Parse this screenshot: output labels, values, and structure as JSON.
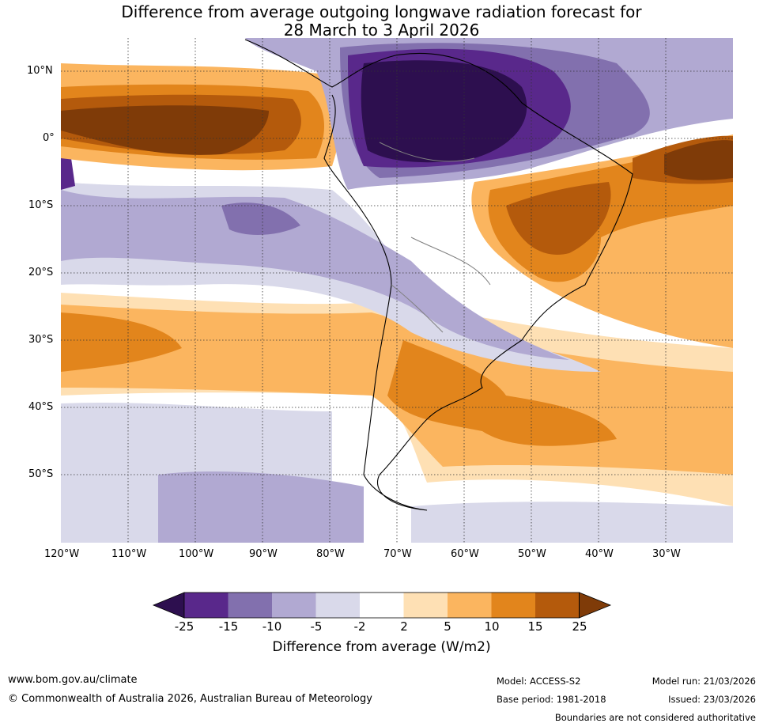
{
  "title_line1": "Difference from average outgoing longwave radiation forecast for",
  "title_line2": "28 March to 3 April 2026",
  "lat_labels": [
    "10°N",
    "0°",
    "10°S",
    "20°S",
    "30°S",
    "40°S",
    "50°S"
  ],
  "lon_labels": [
    "120°W",
    "110°W",
    "100°W",
    "90°W",
    "80°W",
    "70°W",
    "60°W",
    "50°W",
    "40°W",
    "30°W"
  ],
  "colorbar": {
    "ticks": [
      "-25",
      "-15",
      "-10",
      "-5",
      "-2",
      "2",
      "5",
      "10",
      "15",
      "25"
    ],
    "colors": [
      "#2d0f4f",
      "#59288b",
      "#8270ae",
      "#b1a9d2",
      "#d9d9ea",
      "#ffffff",
      "#fee0b4",
      "#fbb55f",
      "#e2851c",
      "#b45a0c",
      "#7f3b08"
    ],
    "label": "Difference from average (W/m2)"
  },
  "footer": {
    "website": "www.bom.gov.au/climate",
    "copyright": "© Commonwealth of Australia 2026, Australian Bureau of Meteorology",
    "model": "Model: ACCESS-S2",
    "base_period": "Base period: 1981-2018",
    "model_run": "Model run: 21/03/2026",
    "issued": "Issued: 23/03/2026",
    "disclaimer": "Boundaries are not considered authoritative"
  }
}
